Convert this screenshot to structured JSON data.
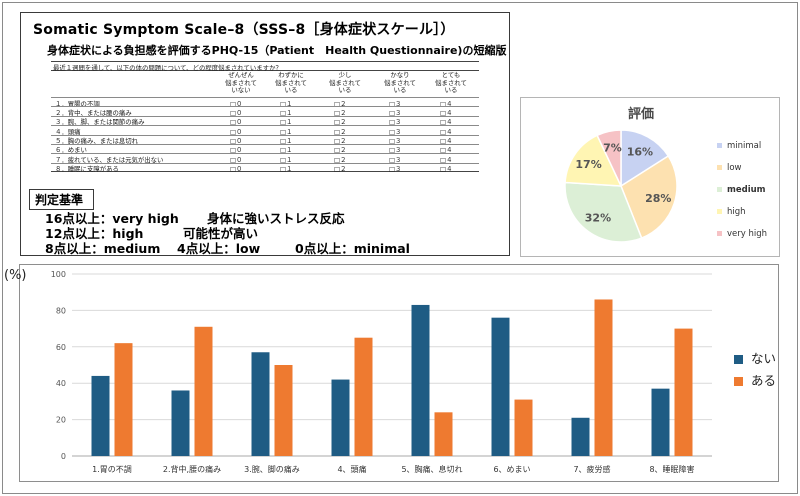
{
  "form": {
    "title": "Somatic Symptom Scale–8（SSS–8［身体症状スケール］）",
    "subtitle": "身体症状による負担感を評価するPHQ-15（Patient　Health Questionnaire)の短縮版",
    "instruction": "最近１週間を通して、以下の体の問題について、どの程度悩まされていますか？",
    "options": [
      "ぜんぜん\n悩まされて\nいない",
      "わずかに\n悩まされて\nいる",
      "少し\n悩まされて\nいる",
      "かなり\n悩まされて\nいる",
      "とても\n悩まされて\nいる"
    ],
    "items": [
      {
        "label": "１．胃腸の不調",
        "choices": [
          "□０",
          "□１",
          "□２",
          "□３",
          "□４"
        ]
      },
      {
        "label": "２．背中、または腰の痛み",
        "choices": [
          "□０",
          "□１",
          "□２",
          "□３",
          "□４"
        ]
      },
      {
        "label": "３．腕、脚、または関節の痛み",
        "choices": [
          "□０",
          "□１",
          "□２",
          "□３",
          "□４"
        ]
      },
      {
        "label": "４．頭痛",
        "choices": [
          "□０",
          "□１",
          "□２",
          "□３",
          "□４"
        ]
      },
      {
        "label": "５．胸の痛み、または息切れ",
        "choices": [
          "□０",
          "□１",
          "□２",
          "□３",
          "□４"
        ]
      },
      {
        "label": "６．めまい",
        "choices": [
          "□０",
          "□１",
          "□２",
          "□３",
          "□４"
        ]
      },
      {
        "label": "７．疲れている、または元気が出ない",
        "choices": [
          "□０",
          "□１",
          "□２",
          "□３",
          "□４"
        ]
      },
      {
        "label": "８．睡眠に支障がある",
        "choices": [
          "□０",
          "□１",
          "□２",
          "□３",
          "□４"
        ]
      }
    ],
    "criteria_heading": "判定基準",
    "criteria": {
      "l1a": "16点以上：very high",
      "l1b": "身体に強いストレス反応",
      "l2a": "12点以上：high",
      "l2b": "可能性が高い",
      "l3a": "8点以上：medium",
      "l3b": "4点以上：low",
      "l3c": "0点以上：minimal"
    }
  },
  "chart_data": [
    {
      "type": "pie",
      "title": "評価",
      "labels": [
        "minimal",
        "low",
        "medium",
        "high",
        "very high"
      ],
      "values": [
        16,
        28,
        32,
        17,
        7
      ],
      "value_labels": [
        "16%",
        "28%",
        "32%",
        "17%",
        "7%"
      ],
      "colors": [
        "#c7d2f2",
        "#fde1b0",
        "#dcefd6",
        "#fff5b3",
        "#f6c2c5"
      ],
      "legend_position": "right"
    },
    {
      "type": "bar",
      "y_unit_label": "(%)",
      "categories": [
        "1.胃の不調",
        "2.背中,腰の痛み",
        "3.腕、脚の痛み",
        "4、頭痛",
        "5、胸痛、息切れ",
        "6、めまい",
        "7、疲労感",
        "8、睡眠障害"
      ],
      "series": [
        {
          "name": "ない",
          "color": "#1f5c84",
          "values": [
            44,
            36,
            57,
            42,
            83,
            76,
            21,
            37
          ]
        },
        {
          "name": "ある",
          "color": "#ee7a30",
          "values": [
            62,
            71,
            50,
            65,
            24,
            31,
            86,
            70
          ]
        }
      ],
      "ylim": [
        0,
        100
      ],
      "yticks": [
        0,
        20,
        40,
        60,
        80,
        100
      ],
      "grid": true,
      "legend_position": "right"
    }
  ]
}
